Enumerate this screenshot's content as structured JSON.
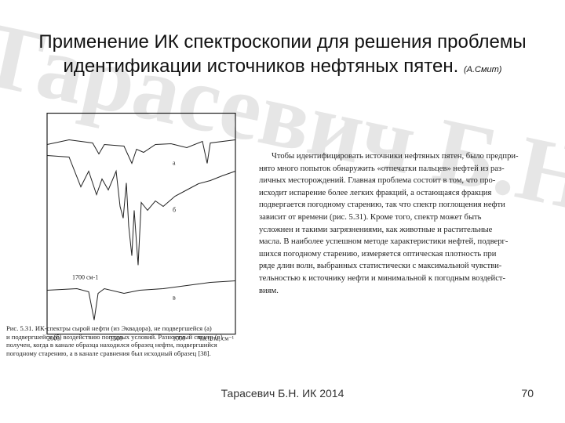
{
  "watermark": "Тарасевич Б.Н. МГУ химфак",
  "header": {
    "title_line1": "Применение ИК спектроскопии для решения проблемы",
    "title_line2": "идентификации источников нефтяных пятен.",
    "author": "(А.Смит)"
  },
  "figure": {
    "curve_labels": [
      "а",
      "б",
      "в"
    ],
    "band_label": "1700 см-1",
    "x_labels": [
      "2000",
      "1500",
      "1000"
    ],
    "x_axis_label": "Частота, см⁻¹",
    "caption": [
      "Рис. 5.31. ИК-спектры сырой нефти (из Эквадора), не подвергшейся (а)",
      "и подвергшейся (б) воздействию погодных условий. Разностный спектр (в)",
      "получен, когда в канале образца находился образец нефти, подвергшийся",
      "погодному старению, а в канале сравнения был исходный образец [38]."
    ]
  },
  "paragraph": {
    "lines": [
      "Чтобы идентифицировать источники нефтяных пятен, было предпри-",
      "нято много попыток обнаружить «отпечатки пальцев» нефтей из раз-",
      "личных месторождений. Главная проблема состоит в том, что про-",
      "исходит испарение более легких фракций, а остающаяся фракция",
      "подвергается погодному старению, так что спектр поглощения нефти",
      "зависит от времени (рис. 5.31). Кроме того, спектр может быть",
      "усложнен и такими загрязнениями, как животные и растительные",
      "масла. В наиболее успешном методе характеристики нефтей, подверг-",
      "шихся погодному старению, измеряется оптическая плотность при",
      "ряде длин волн, выбранных статистически с максимальной чувстви-",
      "тельностью к источнику нефти и минимальной к погодным воздейст-",
      "виям."
    ]
  },
  "footer": {
    "author": "Тарасевич Б.Н. ИК 2014",
    "page": "70"
  }
}
